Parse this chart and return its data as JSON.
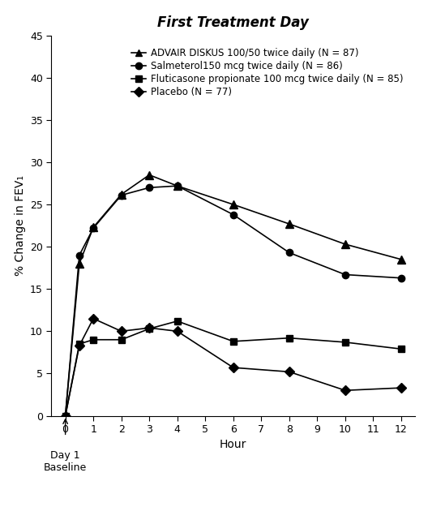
{
  "title": "First Treatment Day",
  "xlabel": "Hour",
  "ylabel": "% Change in FEV₁",
  "ylim": [
    0,
    45
  ],
  "yticks": [
    0,
    5,
    10,
    15,
    20,
    25,
    30,
    35,
    40,
    45
  ],
  "xlim": [
    -0.5,
    12.5
  ],
  "xticks": [
    0,
    1,
    2,
    3,
    4,
    5,
    6,
    7,
    8,
    9,
    10,
    11,
    12
  ],
  "series": [
    {
      "label": "ADVAIR DISKUS 100/50 twice daily (N = 87)",
      "marker": "^",
      "color": "#000000",
      "linewidth": 1.2,
      "markersize": 7,
      "x": [
        0,
        0.5,
        1,
        2,
        3,
        4,
        6,
        8,
        10,
        12
      ],
      "y": [
        0,
        18.0,
        22.3,
        26.2,
        28.5,
        27.2,
        25.0,
        22.7,
        20.3,
        18.5
      ]
    },
    {
      "label": "Salmeterol150 mcg twice daily (N = 86)",
      "marker": "o",
      "color": "#000000",
      "linewidth": 1.2,
      "markersize": 6,
      "x": [
        0,
        0.5,
        1,
        2,
        3,
        4,
        6,
        8,
        10,
        12
      ],
      "y": [
        0,
        19.0,
        22.2,
        26.1,
        27.0,
        27.2,
        23.8,
        19.3,
        16.7,
        16.3
      ]
    },
    {
      "label": "Fluticasone propionate 100 mcg twice daily (N = 85)",
      "marker": "s",
      "color": "#000000",
      "linewidth": 1.2,
      "markersize": 6,
      "x": [
        0,
        0.5,
        1,
        2,
        3,
        4,
        6,
        8,
        10,
        12
      ],
      "y": [
        0,
        8.5,
        9.0,
        9.0,
        10.3,
        11.2,
        8.8,
        9.2,
        8.7,
        7.9
      ]
    },
    {
      "label": "Placebo (N = 77)",
      "marker": "D",
      "color": "#000000",
      "linewidth": 1.2,
      "markersize": 6,
      "x": [
        0,
        0.5,
        1,
        2,
        3,
        4,
        6,
        8,
        10,
        12
      ],
      "y": [
        0,
        8.3,
        11.5,
        10.0,
        10.4,
        10.0,
        5.7,
        5.2,
        3.0,
        3.3
      ]
    }
  ],
  "legend_labels": [
    "ADVAIR DISKUS 100/50 twice daily (N = 87)",
    "Salmeterol150 mcg twice daily (N = 86)",
    "Fluticasone propionate 100 mcg twice daily (N = 85)",
    "Placebo (N = 77)"
  ],
  "baseline_label": "Day 1\nBaseline",
  "background_color": "#ffffff",
  "title_fontsize": 12,
  "axis_fontsize": 10,
  "legend_fontsize": 8.5,
  "tick_fontsize": 9
}
